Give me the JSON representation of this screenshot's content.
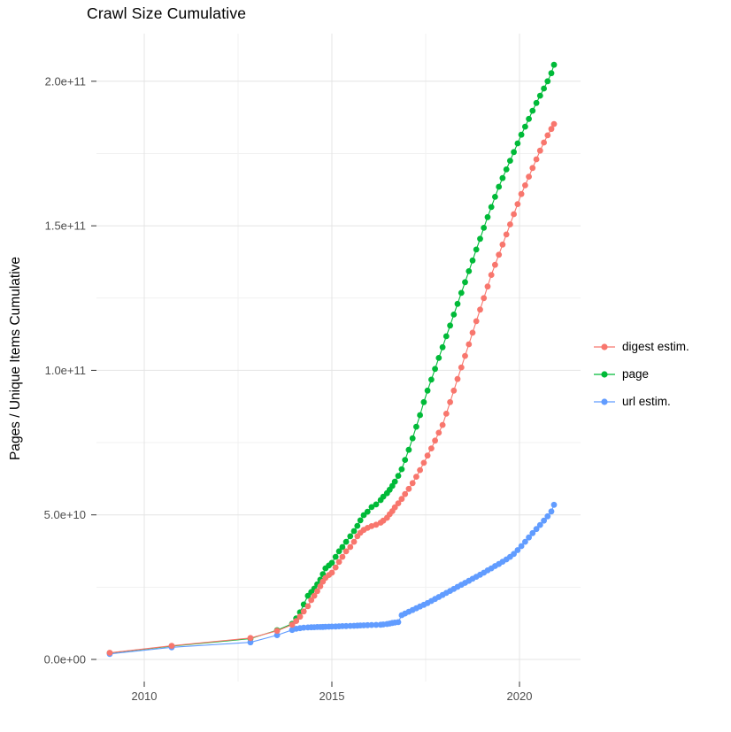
{
  "header": {
    "title": "Crawl Size Cumulative"
  },
  "axes": {
    "y_label": "Pages / Unique Items Cumulative",
    "y_ticks": [
      {
        "label": "0.0e+00",
        "value_billion": 0
      },
      {
        "label": "5.0e+10",
        "value_billion": 50
      },
      {
        "label": "1.0e+11",
        "value_billion": 100
      },
      {
        "label": "1.5e+11",
        "value_billion": 150
      },
      {
        "label": "2.0e+11",
        "value_billion": 200
      }
    ],
    "y_minor_values_billion": [
      25,
      75,
      125,
      175
    ],
    "x_ticks": [
      {
        "label": "2010",
        "value_year": 2010
      },
      {
        "label": "2015",
        "value_year": 2015
      },
      {
        "label": "2020",
        "value_year": 2020
      }
    ],
    "x_minor_values_year": [
      2012.5,
      2017.5
    ]
  },
  "legend": {
    "entries": [
      {
        "label": "digest estim.",
        "color": "#F8766D"
      },
      {
        "label": "page",
        "color": "#00BA38"
      },
      {
        "label": "url estim.",
        "color": "#619CFF"
      }
    ]
  },
  "colors": {
    "grid_major": "#E4E4E4",
    "grid_minor": "#F1F1F1",
    "tick_mark": "#333333",
    "tick_label": "#4D4D4D",
    "text": "#000000",
    "background": "#FFFFFF"
  },
  "chart_data": {
    "type": "line",
    "title": "Crawl Size Cumulative",
    "xlabel": "",
    "ylabel": "Pages / Unique Items Cumulative",
    "value_unit": "pages, values stored in billions (1e9)",
    "x_domain_year": [
      2008.75,
      2021.63
    ],
    "y_domain_billion": [
      -7.7,
      216
    ],
    "grid": true,
    "legend_position": "right",
    "marker": "point-with-line",
    "series": [
      {
        "name": "digest estim.",
        "color": "#F8766D",
        "points_year_billion": [
          [
            2009.08,
            2.3
          ],
          [
            2010.73,
            4.7
          ],
          [
            2012.83,
            7.4
          ],
          [
            2013.54,
            9.9
          ],
          [
            2013.94,
            12.0
          ],
          [
            2014.05,
            13.3
          ],
          [
            2014.15,
            14.8
          ],
          [
            2014.25,
            16.6
          ],
          [
            2014.36,
            18.4
          ],
          [
            2014.45,
            20.5
          ],
          [
            2014.53,
            22.0
          ],
          [
            2014.61,
            23.6
          ],
          [
            2014.69,
            25.3
          ],
          [
            2014.76,
            26.9
          ],
          [
            2014.83,
            28.2
          ],
          [
            2014.92,
            29.2
          ],
          [
            2015.0,
            30.0
          ],
          [
            2015.1,
            31.8
          ],
          [
            2015.19,
            33.7
          ],
          [
            2015.28,
            35.5
          ],
          [
            2015.38,
            37.4
          ],
          [
            2015.49,
            38.9
          ],
          [
            2015.59,
            40.7
          ],
          [
            2015.68,
            42.6
          ],
          [
            2015.76,
            43.8
          ],
          [
            2015.85,
            44.8
          ],
          [
            2015.95,
            45.5
          ],
          [
            2016.06,
            46.1
          ],
          [
            2016.18,
            46.6
          ],
          [
            2016.3,
            47.3
          ],
          [
            2016.37,
            48.0
          ],
          [
            2016.47,
            49.0
          ],
          [
            2016.54,
            50.2
          ],
          [
            2016.61,
            51.3
          ],
          [
            2016.68,
            52.6
          ],
          [
            2016.77,
            54.0
          ],
          [
            2016.86,
            55.5
          ],
          [
            2016.95,
            57.2
          ],
          [
            2017.05,
            59.0
          ],
          [
            2017.15,
            61.0
          ],
          [
            2017.25,
            63.2
          ],
          [
            2017.35,
            65.5
          ],
          [
            2017.45,
            68.0
          ],
          [
            2017.55,
            70.5
          ],
          [
            2017.65,
            73.0
          ],
          [
            2017.75,
            75.7
          ],
          [
            2017.85,
            78.4
          ],
          [
            2017.95,
            81.1
          ],
          [
            2018.05,
            85.0
          ],
          [
            2018.15,
            89.0
          ],
          [
            2018.25,
            93.0
          ],
          [
            2018.35,
            97.0
          ],
          [
            2018.45,
            101.0
          ],
          [
            2018.55,
            105.0
          ],
          [
            2018.65,
            109.0
          ],
          [
            2018.75,
            113.0
          ],
          [
            2018.85,
            117.0
          ],
          [
            2018.95,
            121.0
          ],
          [
            2019.05,
            125.0
          ],
          [
            2019.15,
            129.0
          ],
          [
            2019.25,
            133.0
          ],
          [
            2019.35,
            136.5
          ],
          [
            2019.45,
            140.0
          ],
          [
            2019.55,
            143.5
          ],
          [
            2019.65,
            147.0
          ],
          [
            2019.75,
            150.5
          ],
          [
            2019.85,
            154.0
          ],
          [
            2019.95,
            157.5
          ],
          [
            2020.05,
            161.0
          ],
          [
            2020.15,
            164.0
          ],
          [
            2020.25,
            167.0
          ],
          [
            2020.35,
            170.0
          ],
          [
            2020.45,
            173.0
          ],
          [
            2020.55,
            176.0
          ],
          [
            2020.65,
            178.8
          ],
          [
            2020.75,
            181.3
          ],
          [
            2020.85,
            183.5
          ],
          [
            2020.92,
            185.2
          ]
        ]
      },
      {
        "name": "page",
        "color": "#00BA38",
        "points_year_billion": [
          [
            2009.08,
            2.2
          ],
          [
            2010.73,
            4.6
          ],
          [
            2012.83,
            7.2
          ],
          [
            2013.54,
            10.1
          ],
          [
            2013.94,
            12.3
          ],
          [
            2014.05,
            14.2
          ],
          [
            2014.15,
            16.3
          ],
          [
            2014.25,
            19.0
          ],
          [
            2014.36,
            22.0
          ],
          [
            2014.45,
            23.3
          ],
          [
            2014.53,
            24.5
          ],
          [
            2014.61,
            26.0
          ],
          [
            2014.69,
            27.6
          ],
          [
            2014.76,
            29.5
          ],
          [
            2014.83,
            31.5
          ],
          [
            2014.92,
            32.5
          ],
          [
            2015.0,
            33.4
          ],
          [
            2015.1,
            35.5
          ],
          [
            2015.19,
            37.4
          ],
          [
            2015.28,
            38.9
          ],
          [
            2015.38,
            40.7
          ],
          [
            2015.49,
            42.6
          ],
          [
            2015.59,
            44.4
          ],
          [
            2015.68,
            46.2
          ],
          [
            2015.76,
            48.1
          ],
          [
            2015.85,
            49.9
          ],
          [
            2015.95,
            51.1
          ],
          [
            2016.06,
            52.7
          ],
          [
            2016.18,
            53.6
          ],
          [
            2016.3,
            55.1
          ],
          [
            2016.37,
            56.3
          ],
          [
            2016.47,
            57.5
          ],
          [
            2016.54,
            58.7
          ],
          [
            2016.61,
            60.0
          ],
          [
            2016.68,
            61.5
          ],
          [
            2016.77,
            63.5
          ],
          [
            2016.86,
            65.8
          ],
          [
            2016.95,
            69.0
          ],
          [
            2017.05,
            72.5
          ],
          [
            2017.15,
            76.5
          ],
          [
            2017.25,
            80.5
          ],
          [
            2017.35,
            84.5
          ],
          [
            2017.45,
            89.0
          ],
          [
            2017.55,
            93.0
          ],
          [
            2017.65,
            96.8
          ],
          [
            2017.75,
            100.5
          ],
          [
            2017.85,
            104.3
          ],
          [
            2017.95,
            108.0
          ],
          [
            2018.05,
            111.8
          ],
          [
            2018.15,
            115.5
          ],
          [
            2018.25,
            119.3
          ],
          [
            2018.35,
            123.0
          ],
          [
            2018.45,
            126.8
          ],
          [
            2018.55,
            130.5
          ],
          [
            2018.65,
            134.3
          ],
          [
            2018.75,
            138.0
          ],
          [
            2018.85,
            141.8
          ],
          [
            2018.95,
            145.5
          ],
          [
            2019.05,
            149.3
          ],
          [
            2019.15,
            153.0
          ],
          [
            2019.25,
            156.5
          ],
          [
            2019.35,
            160.0
          ],
          [
            2019.45,
            163.5
          ],
          [
            2019.55,
            166.5
          ],
          [
            2019.65,
            169.5
          ],
          [
            2019.75,
            172.5
          ],
          [
            2019.85,
            175.5
          ],
          [
            2019.95,
            178.5
          ],
          [
            2020.05,
            181.5
          ],
          [
            2020.15,
            184.3
          ],
          [
            2020.25,
            187.0
          ],
          [
            2020.35,
            189.8
          ],
          [
            2020.45,
            192.5
          ],
          [
            2020.55,
            195.0
          ],
          [
            2020.65,
            197.5
          ],
          [
            2020.75,
            200.0
          ],
          [
            2020.85,
            202.8
          ],
          [
            2020.92,
            205.7
          ]
        ]
      },
      {
        "name": "url estim.",
        "color": "#619CFF",
        "points_year_billion": [
          [
            2009.08,
            1.9
          ],
          [
            2010.73,
            4.2
          ],
          [
            2012.83,
            5.9
          ],
          [
            2013.54,
            8.4
          ],
          [
            2013.94,
            10.2
          ],
          [
            2014.05,
            10.6
          ],
          [
            2014.15,
            10.8
          ],
          [
            2014.25,
            11.0
          ],
          [
            2014.36,
            11.05
          ],
          [
            2014.45,
            11.1
          ],
          [
            2014.53,
            11.15
          ],
          [
            2014.61,
            11.2
          ],
          [
            2014.69,
            11.22
          ],
          [
            2014.76,
            11.25
          ],
          [
            2014.83,
            11.3
          ],
          [
            2014.92,
            11.32
          ],
          [
            2015.0,
            11.35
          ],
          [
            2015.1,
            11.4
          ],
          [
            2015.19,
            11.45
          ],
          [
            2015.28,
            11.5
          ],
          [
            2015.38,
            11.55
          ],
          [
            2015.49,
            11.6
          ],
          [
            2015.59,
            11.65
          ],
          [
            2015.68,
            11.7
          ],
          [
            2015.76,
            11.75
          ],
          [
            2015.85,
            11.8
          ],
          [
            2015.95,
            11.85
          ],
          [
            2016.06,
            11.9
          ],
          [
            2016.18,
            11.95
          ],
          [
            2016.3,
            12.0
          ],
          [
            2016.37,
            12.1
          ],
          [
            2016.47,
            12.25
          ],
          [
            2016.54,
            12.4
          ],
          [
            2016.61,
            12.6
          ],
          [
            2016.68,
            12.75
          ],
          [
            2016.77,
            12.9
          ],
          [
            2016.86,
            15.3
          ],
          [
            2016.95,
            15.9
          ],
          [
            2017.05,
            16.5
          ],
          [
            2017.15,
            17.1
          ],
          [
            2017.25,
            17.7
          ],
          [
            2017.35,
            18.3
          ],
          [
            2017.45,
            18.9
          ],
          [
            2017.55,
            19.5
          ],
          [
            2017.65,
            20.2
          ],
          [
            2017.75,
            20.9
          ],
          [
            2017.85,
            21.6
          ],
          [
            2017.95,
            22.3
          ],
          [
            2018.05,
            23.0
          ],
          [
            2018.15,
            23.7
          ],
          [
            2018.25,
            24.4
          ],
          [
            2018.35,
            25.1
          ],
          [
            2018.45,
            25.8
          ],
          [
            2018.55,
            26.5
          ],
          [
            2018.65,
            27.2
          ],
          [
            2018.75,
            27.9
          ],
          [
            2018.85,
            28.6
          ],
          [
            2018.95,
            29.3
          ],
          [
            2019.05,
            30.0
          ],
          [
            2019.15,
            30.8
          ],
          [
            2019.25,
            31.5
          ],
          [
            2019.35,
            32.3
          ],
          [
            2019.45,
            33.0
          ],
          [
            2019.55,
            33.8
          ],
          [
            2019.65,
            34.6
          ],
          [
            2019.75,
            35.5
          ],
          [
            2019.85,
            36.5
          ],
          [
            2019.95,
            37.8
          ],
          [
            2020.05,
            39.2
          ],
          [
            2020.15,
            40.7
          ],
          [
            2020.25,
            42.2
          ],
          [
            2020.35,
            43.7
          ],
          [
            2020.45,
            45.1
          ],
          [
            2020.55,
            46.5
          ],
          [
            2020.65,
            48.0
          ],
          [
            2020.75,
            49.5
          ],
          [
            2020.85,
            51.2
          ],
          [
            2020.92,
            53.5
          ]
        ]
      }
    ]
  }
}
